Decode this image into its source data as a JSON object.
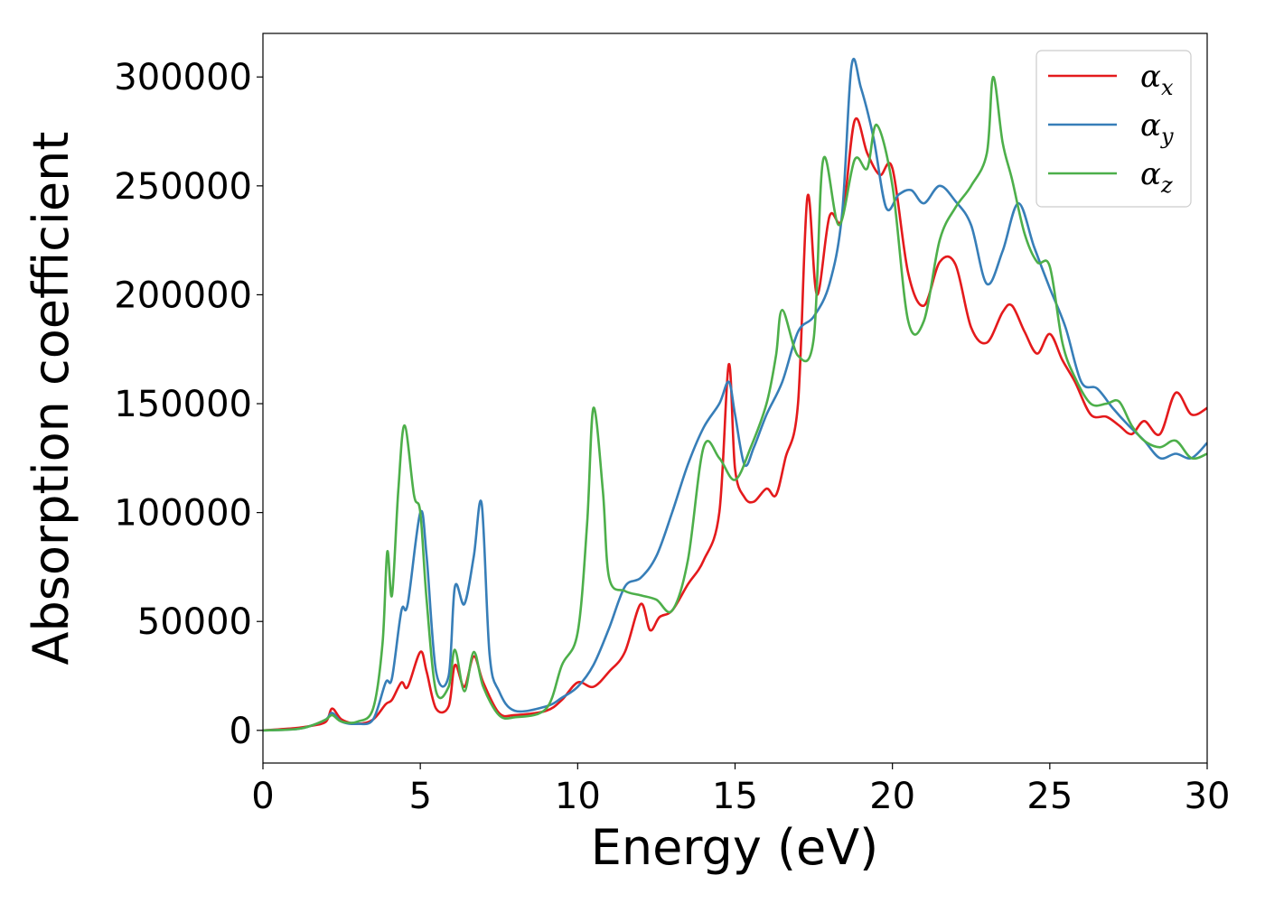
{
  "chart_data": {
    "type": "line",
    "title": "",
    "xlabel": "Energy (eV)",
    "ylabel": "Absorption coefficient",
    "xlim": [
      0,
      30
    ],
    "ylim": [
      -15000,
      320000
    ],
    "xticks": [
      0,
      5,
      10,
      15,
      20,
      25,
      30
    ],
    "yticks": [
      0,
      50000,
      100000,
      150000,
      200000,
      250000,
      300000
    ],
    "grid": false,
    "legend_position": "top-right",
    "series": [
      {
        "name": "αx",
        "symbol": "α",
        "subscript": "x",
        "color": "#e41a1c",
        "x": [
          0,
          1,
          1.5,
          2,
          2.2,
          2.5,
          3,
          3.5,
          3.9,
          4.1,
          4.4,
          4.6,
          5.0,
          5.2,
          5.5,
          5.9,
          6.1,
          6.4,
          6.7,
          7.0,
          7.5,
          8,
          9,
          9.5,
          10,
          10.5,
          11,
          11.5,
          12,
          12.3,
          12.6,
          13,
          13.5,
          14,
          14.5,
          14.8,
          15.0,
          15.3,
          15.6,
          16,
          16.3,
          16.6,
          17,
          17.3,
          17.6,
          18,
          18.4,
          18.8,
          19.2,
          19.6,
          20,
          20.5,
          21,
          21.5,
          22,
          22.5,
          23,
          23.5,
          23.8,
          24.2,
          24.6,
          25,
          25.4,
          25.8,
          26.3,
          26.8,
          27.2,
          27.6,
          28,
          28.5,
          29,
          29.5,
          30
        ],
        "y": [
          0,
          1000,
          2000,
          4000,
          10000,
          5000,
          3000,
          5000,
          12000,
          14000,
          22000,
          20000,
          36000,
          27000,
          10000,
          11000,
          30000,
          20000,
          34000,
          22000,
          8000,
          7000,
          9000,
          14000,
          22000,
          20000,
          27000,
          36000,
          58000,
          46000,
          52000,
          55000,
          67000,
          78000,
          100000,
          168000,
          120000,
          107000,
          105000,
          111000,
          108000,
          125000,
          150000,
          245000,
          200000,
          236000,
          235000,
          280000,
          265000,
          255000,
          258000,
          210000,
          195000,
          215000,
          214000,
          185000,
          178000,
          192000,
          195000,
          183000,
          173000,
          182000,
          170000,
          160000,
          145000,
          144000,
          140000,
          136000,
          142000,
          136000,
          155000,
          145000,
          148000
        ]
      },
      {
        "name": "αy",
        "symbol": "α",
        "subscript": "y",
        "color": "#377eb8",
        "x": [
          0,
          1,
          1.5,
          2,
          2.2,
          2.5,
          3,
          3.5,
          3.9,
          4.1,
          4.4,
          4.6,
          5.0,
          5.2,
          5.5,
          5.9,
          6.1,
          6.4,
          6.7,
          6.95,
          7.2,
          7.5,
          8,
          9,
          9.5,
          10,
          10.5,
          11,
          11.5,
          12,
          12.5,
          13,
          13.5,
          14,
          14.5,
          14.8,
          15.0,
          15.3,
          15.6,
          16,
          16.5,
          17,
          17.5,
          18,
          18.4,
          18.7,
          19.0,
          19.4,
          19.8,
          20.2,
          20.6,
          21,
          21.5,
          22,
          22.5,
          23,
          23.5,
          24,
          24.5,
          25,
          25.5,
          26,
          26.5,
          27,
          27.5,
          28,
          28.5,
          29,
          29.5,
          30
        ],
        "y": [
          0,
          500,
          2000,
          5000,
          8000,
          4000,
          3000,
          5000,
          22000,
          24000,
          55000,
          58000,
          100000,
          80000,
          27000,
          25000,
          66000,
          58000,
          80000,
          104000,
          35000,
          18000,
          9000,
          11000,
          15000,
          20000,
          30000,
          47000,
          66000,
          70000,
          80000,
          100000,
          122000,
          139000,
          150000,
          160000,
          145000,
          122000,
          130000,
          145000,
          160000,
          183000,
          190000,
          205000,
          237000,
          305000,
          295000,
          272000,
          240000,
          246000,
          248000,
          242000,
          250000,
          243000,
          232000,
          205000,
          220000,
          242000,
          222000,
          203000,
          185000,
          160000,
          157000,
          148000,
          140000,
          133000,
          125000,
          127000,
          125000,
          132000
        ]
      },
      {
        "name": "αz",
        "symbol": "α",
        "subscript": "z",
        "color": "#4daf4a",
        "x": [
          0,
          1,
          1.5,
          2,
          2.2,
          2.5,
          3,
          3.5,
          3.8,
          3.95,
          4.1,
          4.3,
          4.5,
          4.8,
          5.0,
          5.2,
          5.5,
          5.9,
          6.1,
          6.4,
          6.7,
          7.0,
          7.5,
          8,
          9,
          9.5,
          10,
          10.3,
          10.5,
          10.8,
          11,
          11.5,
          12,
          12.5,
          13,
          13.5,
          14,
          14.5,
          15,
          15.5,
          16,
          16.3,
          16.5,
          17,
          17.5,
          17.8,
          18.3,
          18.8,
          19.2,
          19.5,
          20,
          20.5,
          21,
          21.5,
          22,
          22.5,
          23,
          23.2,
          23.5,
          23.8,
          24.2,
          24.6,
          25,
          25.4,
          25.8,
          26.3,
          26.8,
          27.2,
          27.6,
          28,
          28.5,
          29,
          29.5,
          30
        ],
        "y": [
          0,
          500,
          2000,
          5000,
          7000,
          4000,
          4000,
          10000,
          40000,
          82000,
          62000,
          110000,
          140000,
          108000,
          100000,
          60000,
          18000,
          20000,
          37000,
          18000,
          36000,
          20000,
          7000,
          6000,
          10000,
          30000,
          45000,
          95000,
          148000,
          110000,
          70000,
          64000,
          62000,
          60000,
          55000,
          78000,
          130000,
          125000,
          115000,
          130000,
          150000,
          172000,
          193000,
          172000,
          180000,
          262000,
          232000,
          262000,
          258000,
          278000,
          250000,
          188000,
          188000,
          225000,
          240000,
          250000,
          265000,
          300000,
          270000,
          253000,
          228000,
          215000,
          213000,
          178000,
          162000,
          150000,
          150000,
          151000,
          140000,
          133000,
          130000,
          133000,
          125000,
          127000
        ]
      }
    ]
  }
}
